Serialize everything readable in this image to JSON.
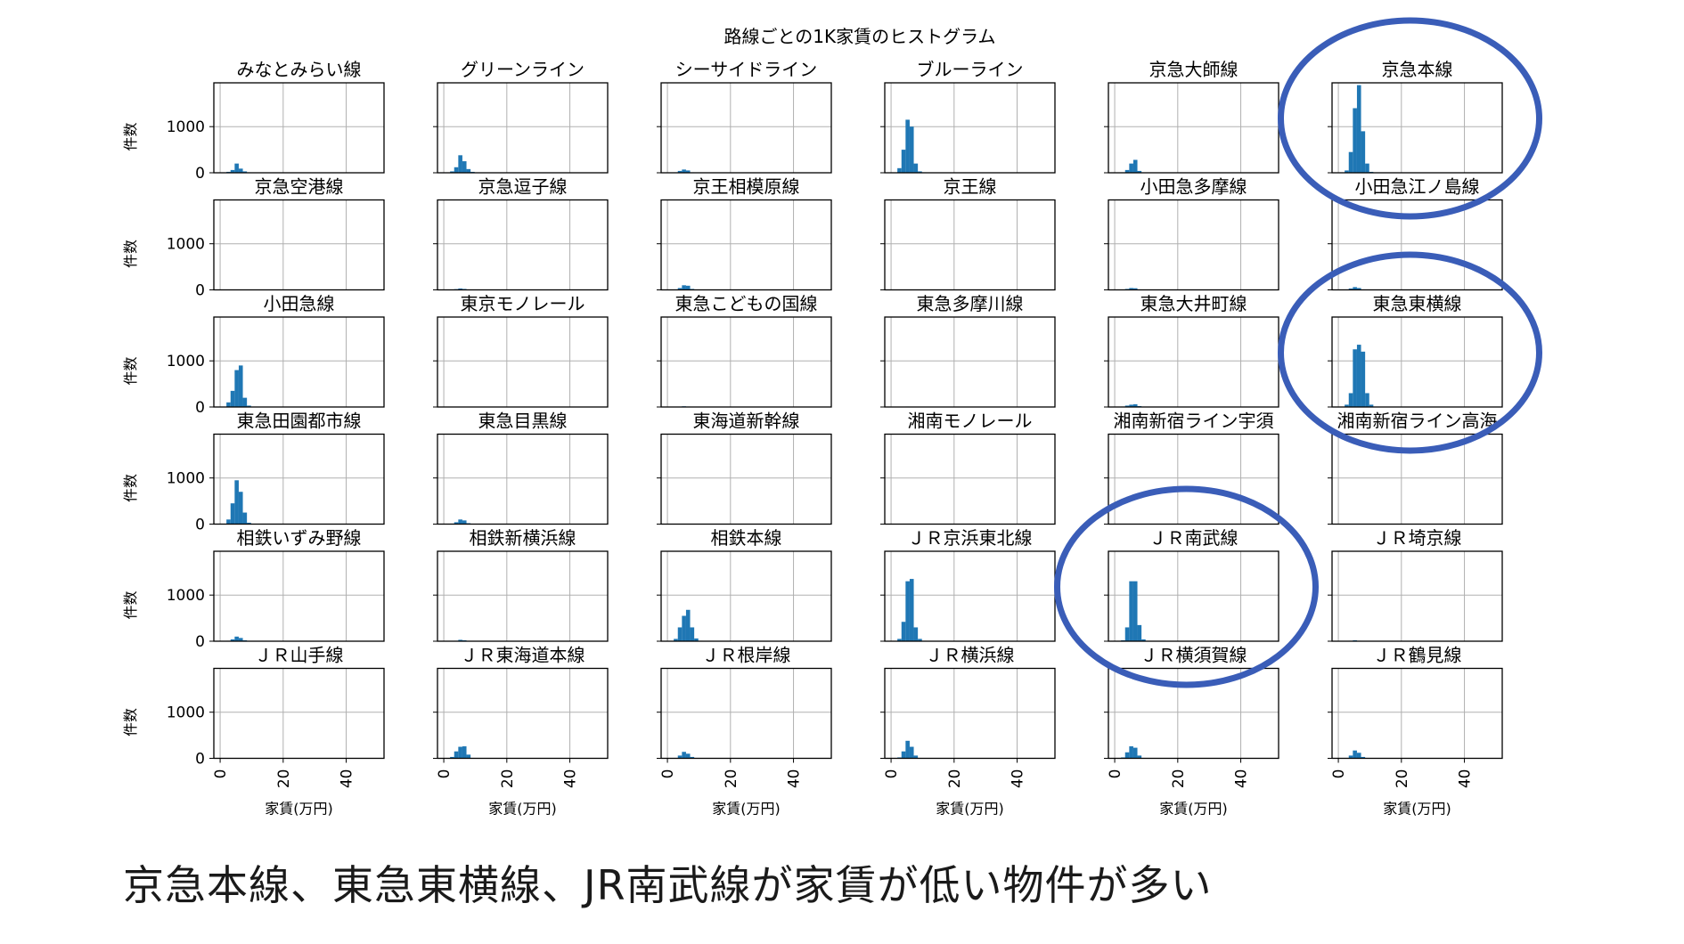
{
  "chart_data": {
    "type": "bar",
    "title": "路線ごとの1K家賃のヒストグラム",
    "xlabel": "家賃(万円)",
    "ylabel": "件数",
    "xticks": [
      "0",
      "20",
      "40"
    ],
    "yticks": [
      "0",
      "1000"
    ],
    "xlim": [
      -2,
      52
    ],
    "ylim": [
      0,
      1950
    ],
    "grid": true,
    "bar_color": "#1f77b4",
    "bin_edges": [
      2,
      3.3,
      4.6,
      5.9,
      7.2,
      8.5,
      9.8,
      11.1,
      12.4,
      13.7
    ],
    "panels": [
      {
        "name": "みなとみらい線",
        "values": [
          20,
          60,
          200,
          90,
          30,
          10,
          0,
          0,
          0
        ]
      },
      {
        "name": "グリーンライン",
        "values": [
          30,
          120,
          380,
          250,
          80,
          20,
          0,
          0,
          0
        ]
      },
      {
        "name": "シーサイドライン",
        "values": [
          10,
          40,
          70,
          50,
          10,
          0,
          0,
          0,
          0
        ]
      },
      {
        "name": "ブルーライン",
        "values": [
          100,
          500,
          1150,
          1000,
          200,
          30,
          10,
          0,
          0
        ]
      },
      {
        "name": "京急大師線",
        "values": [
          10,
          60,
          200,
          280,
          40,
          0,
          0,
          0,
          0
        ]
      },
      {
        "name": "京急本線",
        "values": [
          50,
          450,
          1400,
          1900,
          900,
          200,
          20,
          0,
          0
        ]
      },
      {
        "name": "京急空港線",
        "values": [
          0,
          0,
          0,
          0,
          0,
          0,
          0,
          0,
          0
        ]
      },
      {
        "name": "京急逗子線",
        "values": [
          5,
          15,
          30,
          20,
          5,
          0,
          0,
          0,
          0
        ]
      },
      {
        "name": "京王相模原線",
        "values": [
          10,
          40,
          100,
          90,
          20,
          0,
          0,
          0,
          0
        ]
      },
      {
        "name": "京王線",
        "values": [
          0,
          0,
          0,
          0,
          0,
          0,
          0,
          0,
          0
        ]
      },
      {
        "name": "小田急多摩線",
        "values": [
          5,
          20,
          40,
          35,
          10,
          0,
          0,
          0,
          0
        ]
      },
      {
        "name": "小田急江ノ島線",
        "values": [
          10,
          30,
          60,
          40,
          10,
          0,
          0,
          0,
          0
        ]
      },
      {
        "name": "小田急線",
        "values": [
          100,
          350,
          800,
          900,
          200,
          30,
          0,
          0,
          0
        ]
      },
      {
        "name": "東京モノレール",
        "values": [
          0,
          0,
          0,
          0,
          0,
          0,
          0,
          0,
          0
        ]
      },
      {
        "name": "東急こどもの国線",
        "values": [
          0,
          5,
          15,
          10,
          0,
          0,
          0,
          0,
          0
        ]
      },
      {
        "name": "東急多摩川線",
        "values": [
          0,
          5,
          10,
          5,
          0,
          0,
          0,
          0,
          0
        ]
      },
      {
        "name": "東急大井町線",
        "values": [
          10,
          30,
          50,
          60,
          20,
          0,
          0,
          0,
          0
        ]
      },
      {
        "name": "東急東横線",
        "values": [
          50,
          300,
          1250,
          1350,
          1200,
          300,
          50,
          0,
          0
        ]
      },
      {
        "name": "東急田園都市線",
        "values": [
          100,
          450,
          950,
          700,
          250,
          30,
          0,
          0,
          0
        ]
      },
      {
        "name": "東急目黒線",
        "values": [
          10,
          40,
          100,
          80,
          20,
          0,
          0,
          0,
          0
        ]
      },
      {
        "name": "東海道新幹線",
        "values": [
          0,
          0,
          0,
          0,
          0,
          0,
          0,
          0,
          0
        ]
      },
      {
        "name": "湘南モノレール",
        "values": [
          0,
          0,
          0,
          0,
          0,
          0,
          0,
          0,
          0
        ]
      },
      {
        "name": "湘南新宿ライン宇須",
        "values": [
          0,
          0,
          0,
          0,
          0,
          0,
          0,
          0,
          0
        ]
      },
      {
        "name": "湘南新宿ライン高海",
        "values": [
          0,
          0,
          0,
          0,
          0,
          0,
          0,
          0,
          0
        ]
      },
      {
        "name": "相鉄いずみ野線",
        "values": [
          10,
          40,
          100,
          70,
          20,
          0,
          0,
          0,
          0
        ]
      },
      {
        "name": "相鉄新横浜線",
        "values": [
          0,
          10,
          30,
          20,
          5,
          0,
          0,
          0,
          0
        ]
      },
      {
        "name": "相鉄本線",
        "values": [
          50,
          300,
          550,
          680,
          300,
          60,
          10,
          0,
          0
        ]
      },
      {
        "name": "ＪＲ京浜東北線",
        "values": [
          50,
          420,
          1300,
          1350,
          300,
          50,
          10,
          0,
          0
        ]
      },
      {
        "name": "ＪＲ南武線",
        "values": [
          20,
          300,
          1300,
          1300,
          350,
          40,
          0,
          0,
          0
        ]
      },
      {
        "name": "ＪＲ埼京線",
        "values": [
          0,
          10,
          20,
          10,
          0,
          0,
          0,
          0,
          0
        ]
      },
      {
        "name": "ＪＲ山手線",
        "values": [
          0,
          0,
          0,
          0,
          0,
          0,
          0,
          0,
          0
        ]
      },
      {
        "name": "ＪＲ東海道本線",
        "values": [
          30,
          150,
          250,
          260,
          80,
          10,
          0,
          0,
          0
        ]
      },
      {
        "name": "ＪＲ根岸線",
        "values": [
          10,
          60,
          140,
          100,
          30,
          0,
          0,
          0,
          0
        ]
      },
      {
        "name": "ＪＲ横浜線",
        "values": [
          20,
          150,
          380,
          250,
          60,
          10,
          0,
          0,
          0
        ]
      },
      {
        "name": "ＪＲ横須賀線",
        "values": [
          20,
          130,
          260,
          230,
          60,
          10,
          0,
          0,
          0
        ]
      },
      {
        "name": "ＪＲ鶴見線",
        "values": [
          10,
          60,
          170,
          120,
          30,
          0,
          0,
          0,
          0
        ]
      }
    ],
    "highlights": [
      "京急本線",
      "東急東横線",
      "ＪＲ南武線"
    ],
    "highlight_color": "#3a5db8"
  },
  "caption": "京急本線、東急東横線、JR南武線が家賃が低い物件が多い"
}
